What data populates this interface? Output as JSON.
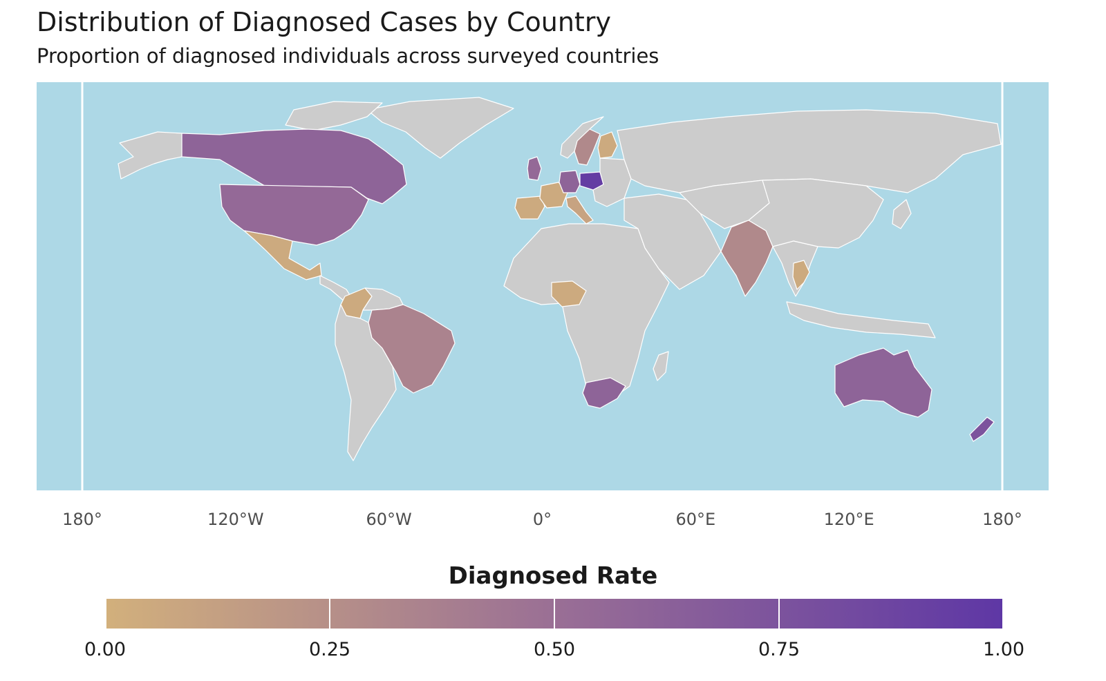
{
  "title": "Distribution of Diagnosed Cases by Country",
  "subtitle": "Proportion of diagnosed individuals across surveyed countries",
  "colors": {
    "ocean": "#add8e6",
    "land_no_data": "#cccccc",
    "border": "#ffffff",
    "scale_low": "#d2b07c",
    "scale_mid": "#9a6f95",
    "scale_high": "#5e37a5"
  },
  "chart_data": {
    "type": "choropleth",
    "projection": "equirectangular",
    "x_axis": {
      "ticks": [
        {
          "lon": -180,
          "label": "180°"
        },
        {
          "lon": -120,
          "label": "120°W"
        },
        {
          "lon": -60,
          "label": "60°W"
        },
        {
          "lon": 0,
          "label": "0°"
        },
        {
          "lon": 60,
          "label": "60°E"
        },
        {
          "lon": 120,
          "label": "120°E"
        },
        {
          "lon": 180,
          "label": "180°"
        }
      ]
    },
    "legend": {
      "title": "Diagnosed Rate",
      "placement": "bottom",
      "min": 0,
      "max": 1,
      "ticks": [
        {
          "value": 0,
          "label": "0.00"
        },
        {
          "value": 0.25,
          "label": "0.25"
        },
        {
          "value": 0.5,
          "label": "0.50"
        },
        {
          "value": 0.75,
          "label": "0.75"
        },
        {
          "value": 1,
          "label": "1.00"
        }
      ]
    },
    "values": [
      {
        "country": "Canada",
        "rate": 0.6
      },
      {
        "country": "United States",
        "rate": 0.55
      },
      {
        "country": "Mexico",
        "rate": 0.05
      },
      {
        "country": "Colombia",
        "rate": 0.05
      },
      {
        "country": "Brazil",
        "rate": 0.35
      },
      {
        "country": "United Kingdom",
        "rate": 0.55
      },
      {
        "country": "France",
        "rate": 0.05
      },
      {
        "country": "Spain",
        "rate": 0.05
      },
      {
        "country": "Germany",
        "rate": 0.6
      },
      {
        "country": "Poland",
        "rate": 0.95
      },
      {
        "country": "Sweden",
        "rate": 0.3
      },
      {
        "country": "Finland",
        "rate": 0.05
      },
      {
        "country": "Italy",
        "rate": 0.1
      },
      {
        "country": "Nigeria",
        "rate": 0.05
      },
      {
        "country": "South Africa",
        "rate": 0.6
      },
      {
        "country": "India",
        "rate": 0.3
      },
      {
        "country": "Thailand",
        "rate": 0.05
      },
      {
        "country": "Australia",
        "rate": 0.6
      },
      {
        "country": "New Zealand",
        "rate": 0.75
      }
    ]
  }
}
